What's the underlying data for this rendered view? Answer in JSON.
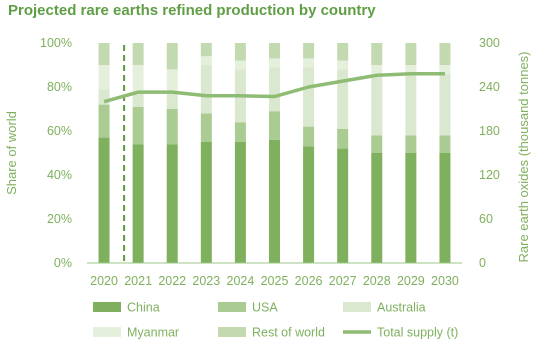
{
  "chart_data": {
    "type": "bar",
    "title": "Projected rare earths refined production by country",
    "categories": [
      "2020",
      "2021",
      "2022",
      "2023",
      "2024",
      "2025",
      "2026",
      "2027",
      "2028",
      "2029",
      "2030"
    ],
    "ylabel": "Share of world",
    "y2label": "Rare earth oxides (thousand tonnes)",
    "ylim": [
      0,
      100
    ],
    "y2lim": [
      0,
      300
    ],
    "yticks": [
      "0%",
      "20%",
      "40%",
      "60%",
      "80%",
      "100%"
    ],
    "y2ticks": [
      "0",
      "60",
      "120",
      "180",
      "240",
      "300"
    ],
    "stacked": true,
    "series": [
      {
        "name": "China",
        "color": "#7fb05e",
        "values": [
          57,
          54,
          54,
          55,
          55,
          56,
          53,
          52,
          50,
          50,
          50
        ]
      },
      {
        "name": "USA",
        "color": "#aacb92",
        "values": [
          15,
          17,
          16,
          13,
          9,
          13,
          9,
          9,
          8,
          8,
          8
        ]
      },
      {
        "name": "Australia",
        "color": "#dae8cf",
        "values": [
          7,
          7,
          7,
          22,
          24,
          20,
          27,
          27,
          28,
          28,
          28
        ]
      },
      {
        "name": "Myanmar",
        "color": "#e4efdc",
        "values": [
          11,
          12,
          11,
          4,
          4,
          4,
          4,
          4,
          4,
          4,
          4
        ]
      },
      {
        "name": "Rest of world",
        "color": "#c3dab1",
        "values": [
          10,
          10,
          12,
          6,
          8,
          7,
          7,
          8,
          10,
          10,
          10
        ]
      }
    ],
    "line": {
      "name": "Total supply (t)",
      "axis": "right",
      "color": "#8fbc74",
      "values": [
        220,
        233,
        233,
        228,
        228,
        227,
        240,
        248,
        256,
        258,
        258
      ]
    },
    "marker": {
      "style": "dashed",
      "between": [
        "2020",
        "2021"
      ]
    },
    "legend": "bottom"
  }
}
